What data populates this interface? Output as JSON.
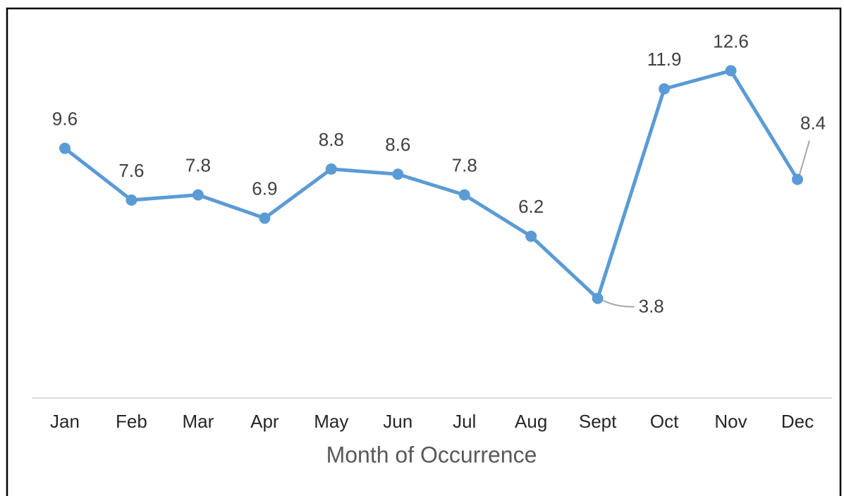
{
  "chart_data": {
    "type": "line",
    "x_label": "Month of Occurrence",
    "categories": [
      "Jan",
      "Feb",
      "Mar",
      "Apr",
      "May",
      "Jun",
      "Jul",
      "Aug",
      "Sept",
      "Oct",
      "Nov",
      "Dec"
    ],
    "series": [
      {
        "color": "#5b9bd5",
        "values": [
          9.6,
          7.6,
          7.8,
          6.9,
          8.8,
          8.6,
          7.8,
          6.2,
          3.8,
          11.9,
          12.6,
          8.4
        ]
      }
    ],
    "ylim": [
      0,
      14
    ]
  }
}
